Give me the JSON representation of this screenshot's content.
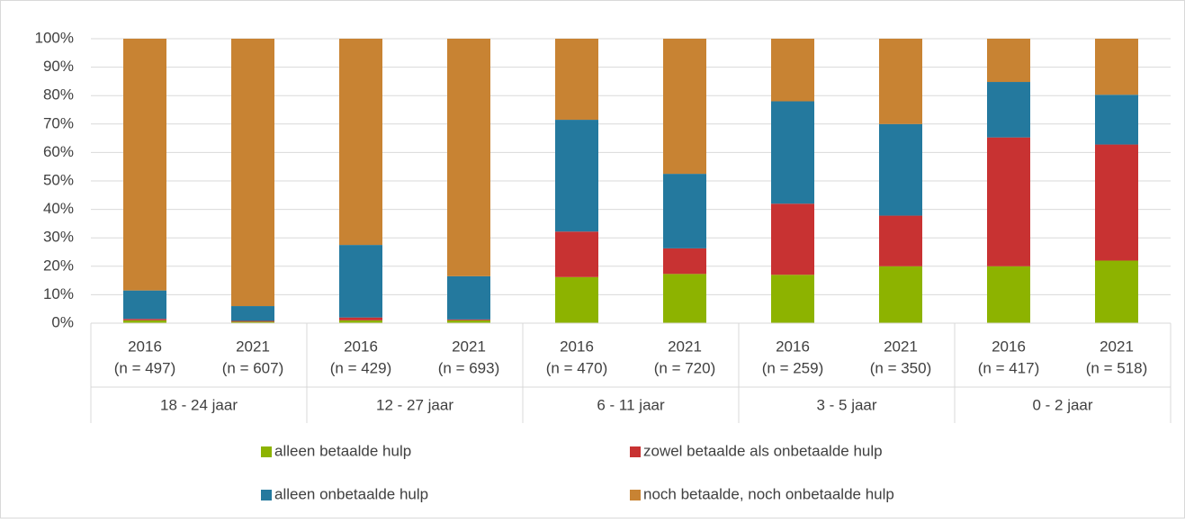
{
  "chart_data": {
    "type": "stacked_bar",
    "categories": [
      "2016",
      "2021",
      "2016",
      "2021",
      "2016",
      "2021",
      "2016",
      "2021",
      "2016",
      "2021"
    ],
    "sample_sizes": [
      "(n = 497)",
      "(n = 607)",
      "(n = 429)",
      "(n = 693)",
      "(n = 470)",
      "(n = 720)",
      "(n = 259)",
      "(n = 350)",
      "(n = 417)",
      "(n = 518)"
    ],
    "groups": [
      "18 - 24 jaar",
      "12 - 27 jaar",
      "6 - 11 jaar",
      "3 - 5 jaar",
      "0 - 2 jaar"
    ],
    "series": [
      {
        "name": "alleen betaalde hulp",
        "color": "#8db300",
        "values": [
          1,
          0.5,
          1,
          1,
          16.2,
          17.3,
          17,
          20,
          20,
          22
        ]
      },
      {
        "name": "zowel betaalde als onbetaalde hulp",
        "color": "#c83232",
        "values": [
          0.5,
          0.3,
          1,
          0.3,
          16,
          9,
          25,
          17.8,
          45.3,
          40.8
        ]
      },
      {
        "name": "alleen onbetaalde hulp",
        "color": "#24799e",
        "values": [
          10,
          5.2,
          25.5,
          15.2,
          39.3,
          26.2,
          36,
          32.2,
          19.5,
          17.5
        ]
      },
      {
        "name": "noch betaalde, noch onbetaalde hulp",
        "color": "#c88333",
        "values": [
          88.5,
          94,
          72.5,
          83.5,
          28.5,
          47.5,
          22,
          30,
          15.2,
          19.7
        ]
      }
    ],
    "ylim": [
      0,
      100
    ],
    "yticks": [
      {
        "value": 0,
        "label": "0%"
      },
      {
        "value": 10,
        "label": "10%"
      },
      {
        "value": 20,
        "label": "20%"
      },
      {
        "value": 30,
        "label": "30%"
      },
      {
        "value": 40,
        "label": "40%"
      },
      {
        "value": 50,
        "label": "50%"
      },
      {
        "value": 60,
        "label": "60%"
      },
      {
        "value": 70,
        "label": "70%"
      },
      {
        "value": 80,
        "label": "80%"
      },
      {
        "value": 90,
        "label": "90%"
      },
      {
        "value": 100,
        "label": "100%"
      }
    ],
    "grid": true
  }
}
